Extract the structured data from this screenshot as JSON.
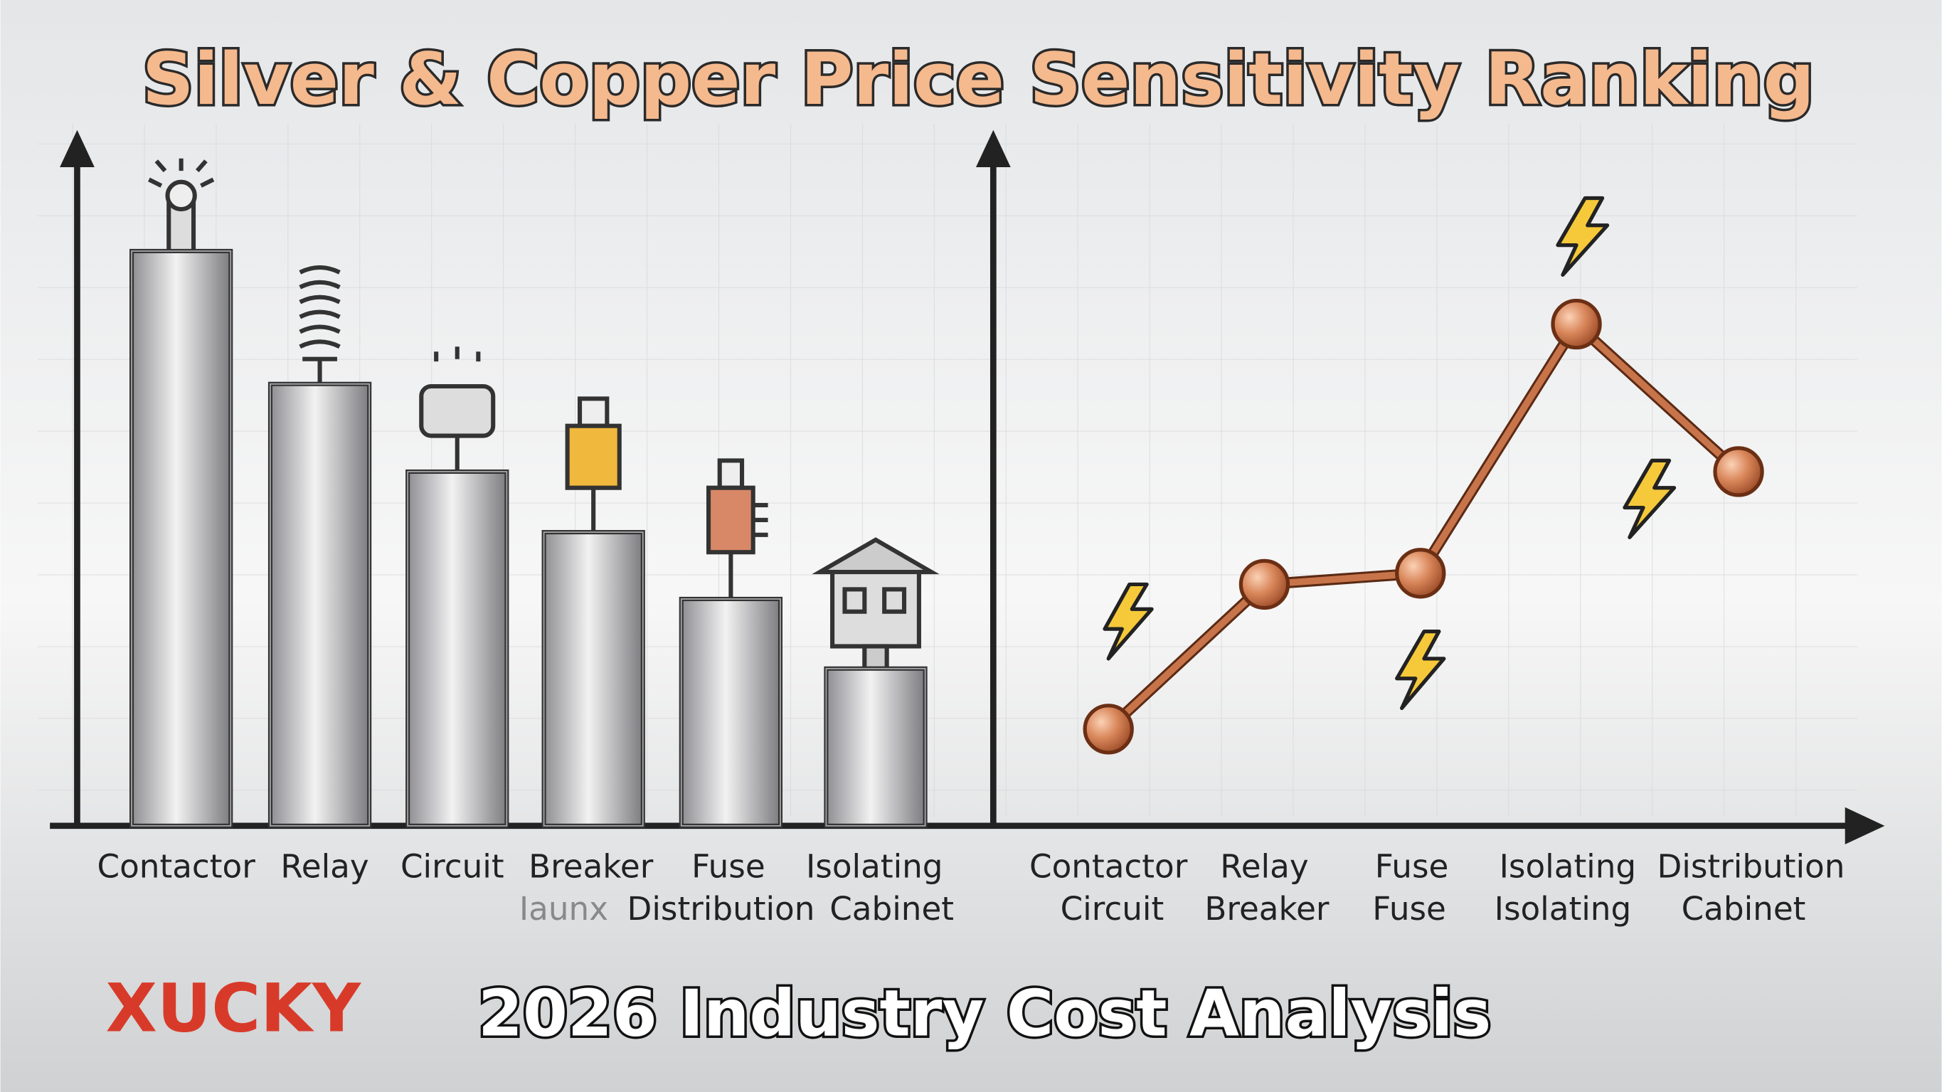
{
  "title": "Silver & Copper Price Sensitivity Ranking",
  "footer": "2026 Industry Cost Analysis",
  "logo": "XUCKY",
  "chart_data": [
    {
      "type": "bar",
      "categories": [
        [
          "Contactor"
        ],
        [
          "Relay"
        ],
        [
          "Circuit"
        ],
        [
          "Breaker",
          "Iaunx"
        ],
        [
          "Fuse",
          "Distribution"
        ],
        [
          "Isolating",
          "Cabinet"
        ]
      ],
      "values": [
        82.6,
        63.5,
        50.9,
        42.2,
        32.6,
        22.6
      ],
      "color": "#a9a9ad",
      "ylim": [
        0,
        100
      ]
    },
    {
      "type": "line",
      "categories": [
        [
          "Contactor",
          "Circuit"
        ],
        [
          "Relay",
          "Breaker"
        ],
        [
          "Fuse",
          "Fuse"
        ],
        [
          "Isolating",
          "Isolating"
        ],
        [
          "Distribution",
          "Cabinet"
        ]
      ],
      "values": [
        13.9,
        34.7,
        36.3,
        72.1,
        50.9
      ],
      "color": "#c8744a",
      "ylim": [
        0,
        100
      ]
    }
  ]
}
